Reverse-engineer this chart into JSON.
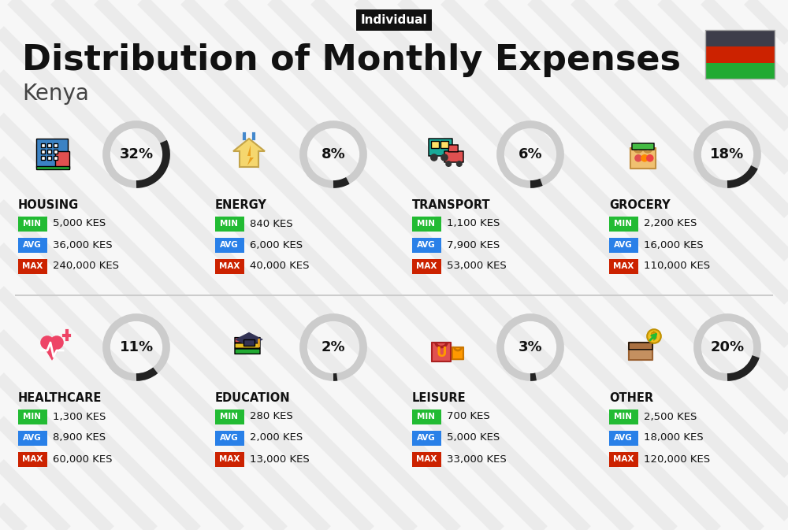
{
  "title": "Distribution of Monthly Expenses",
  "subtitle": "Kenya",
  "tag": "Individual",
  "bg_color": "#f7f7f7",
  "stripe_color": "#ebebeb",
  "categories": [
    {
      "name": "HOUSING",
      "pct": 32,
      "min_val": "5,000 KES",
      "avg_val": "36,000 KES",
      "max_val": "240,000 KES",
      "row": 0,
      "col": 0
    },
    {
      "name": "ENERGY",
      "pct": 8,
      "min_val": "840 KES",
      "avg_val": "6,000 KES",
      "max_val": "40,000 KES",
      "row": 0,
      "col": 1
    },
    {
      "name": "TRANSPORT",
      "pct": 6,
      "min_val": "1,100 KES",
      "avg_val": "7,900 KES",
      "max_val": "53,000 KES",
      "row": 0,
      "col": 2
    },
    {
      "name": "GROCERY",
      "pct": 18,
      "min_val": "2,200 KES",
      "avg_val": "16,000 KES",
      "max_val": "110,000 KES",
      "row": 0,
      "col": 3
    },
    {
      "name": "HEALTHCARE",
      "pct": 11,
      "min_val": "1,300 KES",
      "avg_val": "8,900 KES",
      "max_val": "60,000 KES",
      "row": 1,
      "col": 0
    },
    {
      "name": "EDUCATION",
      "pct": 2,
      "min_val": "280 KES",
      "avg_val": "2,000 KES",
      "max_val": "13,000 KES",
      "row": 1,
      "col": 1
    },
    {
      "name": "LEISURE",
      "pct": 3,
      "min_val": "700 KES",
      "avg_val": "5,000 KES",
      "max_val": "33,000 KES",
      "row": 1,
      "col": 2
    },
    {
      "name": "OTHER",
      "pct": 20,
      "min_val": "2,500 KES",
      "avg_val": "18,000 KES",
      "max_val": "120,000 KES",
      "row": 1,
      "col": 3
    }
  ],
  "min_color": "#22bb33",
  "avg_color": "#2980e8",
  "max_color": "#cc2200",
  "flag_colors": [
    "#3d3d4a",
    "#cc2200",
    "#22aa33"
  ],
  "text_color": "#111111",
  "tag_bg": "#111111",
  "tag_fg": "#ffffff",
  "circle_bg_color": "#cccccc",
  "circle_fg_color": "#222222",
  "separator_color": "#cccccc"
}
